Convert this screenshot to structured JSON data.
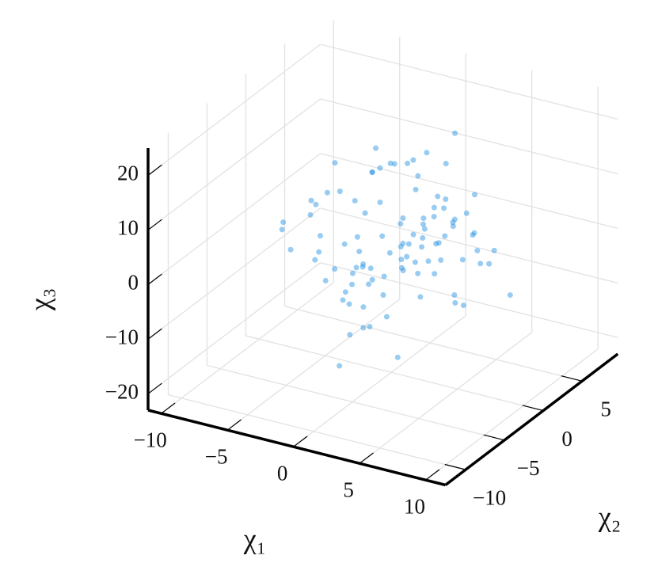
{
  "chart_data": {
    "type": "scatter3d",
    "xlabel": "χ₁",
    "ylabel": "χ₂",
    "zlabel": "χ₃",
    "xlim": [
      -11,
      11.5
    ],
    "ylim": [
      -12.6,
      9.6
    ],
    "zlim": [
      -23,
      25
    ],
    "xticks": [
      {
        "value": -10,
        "label": "−10"
      },
      {
        "value": -5,
        "label": "−5"
      },
      0,
      5,
      10
    ],
    "yticks": [
      {
        "value": -10,
        "label": "−10"
      },
      {
        "value": -5,
        "label": "−5"
      },
      0,
      5
    ],
    "zticks": [
      {
        "value": -20,
        "label": "−20"
      },
      {
        "value": -10,
        "label": "−10"
      },
      0,
      10,
      20
    ],
    "grid": true,
    "color": "#1c8fe0",
    "x": [
      1.2,
      -3.4,
      0.5,
      4.1,
      -1.8,
      2.7,
      -5.2,
      0.9,
      3.3,
      -2.1,
      6.0,
      -0.7,
      1.8,
      -4.0,
      2.2,
      -1.1,
      5.4,
      -3.0,
      0.3,
      3.9,
      -6.3,
      1.5,
      -2.6,
      4.7,
      0.0,
      -1.5,
      2.9,
      -4.6,
      7.1,
      -0.4,
      1.1,
      -2.9,
      3.6,
      -7.5,
      0.8,
      2.4,
      -3.7,
      5.9,
      -1.3,
      0.6,
      -0.9,
      3.1,
      -5.6,
      1.9,
      4.4,
      -2.3,
      0.2,
      -8.2,
      2.6,
      6.5,
      -1.7,
      3.0,
      -4.3,
      0.4,
      1.6,
      -3.1,
      5.1,
      -0.2,
      2.0,
      -6.0,
      8.0,
      -2.5,
      0.7,
      3.4,
      -1.0,
      4.9,
      -3.8,
      1.3,
      -0.6,
      2.8,
      -5.0,
      0.1,
      6.8,
      -2.0,
      1.0,
      -4.9,
      3.7,
      -1.4,
      2.3,
      -9.0,
      4.0,
      -0.3,
      1.7,
      -2.7,
      5.6,
      0.9,
      -3.5,
      2.1,
      -1.9,
      7.4,
      -0.8,
      3.2,
      -6.7,
      1.4,
      -2.2,
      4.6,
      0.6,
      -1.2,
      2.5,
      -4.4
    ],
    "y": [
      0.8,
      -1.5,
      2.3,
      -0.6,
      1.9,
      -3.1,
      0.4,
      4.0,
      -2.2,
      1.1,
      -0.9,
      2.7,
      -4.1,
      0.2,
      3.3,
      -1.8,
      1.5,
      -0.3,
      5.0,
      -2.6,
      0.9,
      -5.2,
      2.0,
      1.2,
      -0.1,
      3.8,
      -3.4,
      1.6,
      -1.0,
      0.5,
      -6.0,
      2.5,
      0.0,
      -1.3,
      4.4,
      -2.9,
      1.8,
      0.7,
      -3.8,
      2.9,
      6.1,
      -0.5,
      1.3,
      -2.4,
      3.0,
      0.3,
      -4.7,
      1.0,
      -1.6,
      2.2,
      -0.7,
      4.6,
      -2.0,
      1.4,
      -5.5,
      0.6,
      2.8,
      -1.1,
      3.5,
      -0.2,
      1.7,
      -3.0,
      0.1,
      2.4,
      -1.9,
      -0.4,
      3.1,
      -2.8,
      7.0,
      0.8,
      -1.2,
      2.1,
      -3.6,
      0.5,
      5.3,
      -0.8,
      1.9,
      -4.3,
      0.2,
      1.4,
      -2.5,
      3.6,
      -0.9,
      2.6,
      -1.4,
      -6.5,
      0.9,
      3.2,
      -2.1,
      0.0,
      4.8,
      -1.7,
      1.1,
      -3.3,
      2.3,
      0.4,
      -0.6,
      6.2,
      -2.9,
      1.6
    ],
    "z": [
      2.1,
      -4.5,
      8.3,
      0.7,
      -1.2,
      5.6,
      -9.8,
      3.4,
      -0.5,
      11.2,
      -6.1,
      1.9,
      -3.3,
      7.5,
      13.0,
      -2.4,
      4.2,
      -12.0,
      0.3,
      6.8,
      -7.2,
      2.6,
      9.9,
      -0.8,
      15.4,
      -5.0,
      1.1,
      -14.3,
      4.7,
      -1.9,
      6.3,
      -10.5,
      2.9,
      0.0,
      -3.7,
      8.8,
      -8.0,
      12.4,
      3.8,
      -2.8,
      10.1,
      -0.2,
      5.1,
      -16.5,
      1.6,
      -4.9,
      7.0,
      -6.6,
      19.2,
      0.9,
      -11.3,
      3.0,
      -1.4,
      14.0,
      -7.7,
      5.9,
      -3.0,
      9.2,
      -0.6,
      2.4,
      -5.8,
      17.1,
      -2.0,
      4.5,
      -13.4,
      7.9,
      0.5,
      -9.0,
      1.3,
      -4.1,
      6.0,
      -1.7,
      11.8,
      -8.6,
      3.6,
      -0.1,
      21.0,
      -18.0,
      5.3,
      -2.5,
      8.4,
      -6.9,
      0.2,
      13.6,
      -3.9,
      2.7,
      -10.0,
      4.9,
      -15.0,
      1.4,
      7.3,
      -5.4,
      3.2,
      -1.0,
      10.6,
      -7.9,
      16.2,
      -2.2,
      0.8,
      -12.7
    ]
  }
}
